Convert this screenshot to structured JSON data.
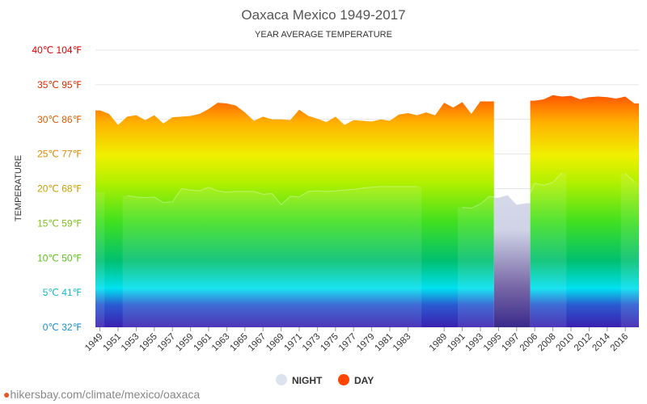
{
  "chart_data": {
    "type": "area",
    "title": "Oaxaca Mexico 1949-2017",
    "subtitle": "YEAR AVERAGE TEMPERATURE",
    "ylabel": "TEMPERATURE",
    "ylim": [
      0,
      40
    ],
    "y_ticks": [
      {
        "value": 0,
        "label": "0℃ 32℉",
        "color": "#1a8fd6"
      },
      {
        "value": 5,
        "label": "5℃ 41℉",
        "color": "#17b8c8"
      },
      {
        "value": 10,
        "label": "10℃ 50℉",
        "color": "#5cc21a"
      },
      {
        "value": 15,
        "label": "15℃ 59℉",
        "color": "#7dc21a"
      },
      {
        "value": 20,
        "label": "20℃ 68℉",
        "color": "#c8a000"
      },
      {
        "value": 25,
        "label": "25℃ 77℉",
        "color": "#e08a00"
      },
      {
        "value": 30,
        "label": "30℃ 86℉",
        "color": "#e05a00"
      },
      {
        "value": 35,
        "label": "35℃ 95℉",
        "color": "#e02a00"
      },
      {
        "value": 40,
        "label": "40℃ 104℉",
        "color": "#e00000"
      }
    ],
    "categories": [
      "1949",
      "1950",
      "1951",
      "1952",
      "1953",
      "1954",
      "1955",
      "1956",
      "1957",
      "1958",
      "1959",
      "1960",
      "1961",
      "1962",
      "1963",
      "1964",
      "1965",
      "1966",
      "1967",
      "1968",
      "1969",
      "1970",
      "1971",
      "1972",
      "1973",
      "1974",
      "1975",
      "1976",
      "1977",
      "1978",
      "1979",
      "1980",
      "1981",
      "1982",
      "1983",
      "1984",
      "1985",
      "1986",
      "1989",
      "1990",
      "1991",
      "1992",
      "1993",
      "1994",
      "1995",
      "1996",
      "1997",
      "1998",
      "2006",
      "2007",
      "2008",
      "2009",
      "2010",
      "2011",
      "2012",
      "2013",
      "2014",
      "2015",
      "2016",
      "2017"
    ],
    "x_tick_labels": [
      "1949",
      "1951",
      "1953",
      "1955",
      "1957",
      "1959",
      "1961",
      "1963",
      "1965",
      "1967",
      "1969",
      "1971",
      "1973",
      "1975",
      "1977",
      "1979",
      "1981",
      "1983",
      "1989",
      "1991",
      "1993",
      "1995",
      "1997",
      "2006",
      "2008",
      "2010",
      "2012",
      "2014",
      "2016"
    ],
    "series": [
      {
        "name": "DAY",
        "color": "#ff4500",
        "values": [
          31.3,
          30.8,
          29.2,
          30.4,
          30.6,
          29.9,
          30.6,
          29.4,
          30.3,
          30.4,
          30.5,
          30.8,
          31.5,
          32.4,
          32.3,
          32.0,
          31.0,
          29.8,
          30.4,
          30.0,
          30.0,
          29.9,
          31.4,
          30.5,
          30.1,
          29.6,
          30.4,
          29.2,
          29.9,
          29.8,
          29.7,
          30.0,
          29.8,
          30.7,
          30.9,
          30.6,
          31.0,
          30.6,
          32.4,
          31.7,
          32.5,
          30.8,
          32.6,
          32.6,
          null,
          null,
          null,
          null,
          32.7,
          32.9,
          33.5,
          33.3,
          33.4,
          32.9,
          33.2,
          33.3,
          33.2,
          33.0,
          33.3,
          32.3
        ]
      },
      {
        "name": "NIGHT",
        "color": "#dde3ee",
        "values": [
          19.5,
          null,
          null,
          19.0,
          18.8,
          18.7,
          18.8,
          18.0,
          18.1,
          20.0,
          19.8,
          19.7,
          20.2,
          19.7,
          19.5,
          19.6,
          19.6,
          19.6,
          19.2,
          19.3,
          17.7,
          18.9,
          18.8,
          19.6,
          19.7,
          19.6,
          19.7,
          19.8,
          19.9,
          20.1,
          20.2,
          20.3,
          20.3,
          20.3,
          20.3,
          20.3,
          null,
          null,
          null,
          null,
          17.3,
          17.2,
          17.8,
          18.9,
          18.7,
          19.1,
          17.7,
          17.9,
          20.8,
          20.5,
          20.9,
          22.3,
          null,
          null,
          null,
          null,
          null,
          null,
          22.2,
          21.0
        ]
      }
    ],
    "legend": {
      "position": "bottom",
      "entries": [
        "NIGHT",
        "DAY"
      ]
    },
    "grid": true
  },
  "source_text": "hikersbay.com/climate/mexico/oaxaca"
}
